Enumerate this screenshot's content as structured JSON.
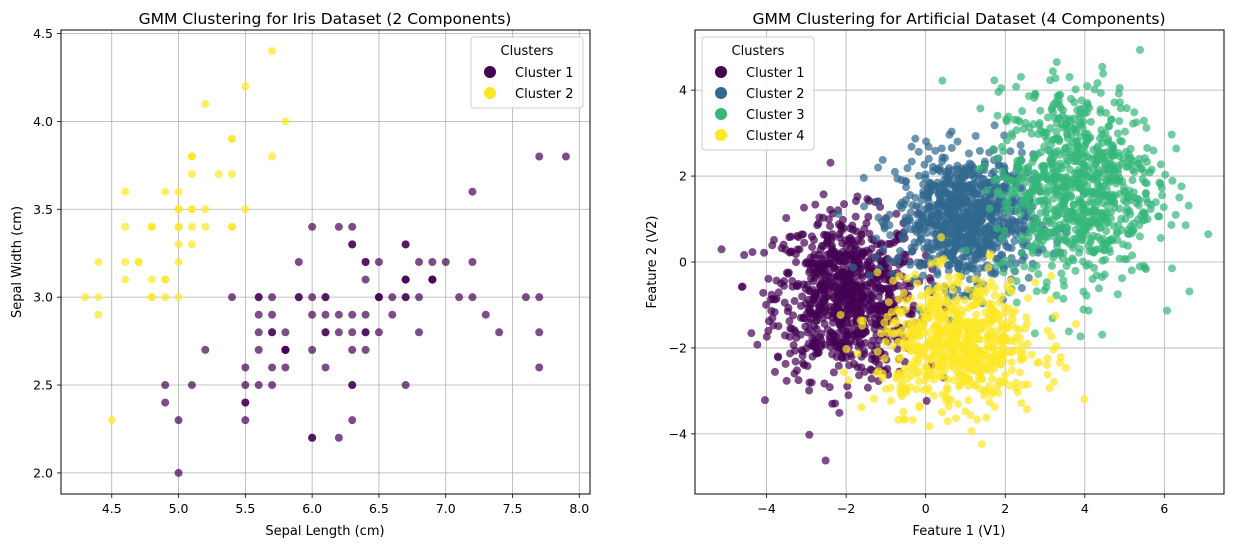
{
  "chart_data": [
    {
      "type": "scatter",
      "title": "GMM Clustering for Iris Dataset (2 Components)",
      "xlabel": "Sepal Length (cm)",
      "ylabel": "Sepal Width (cm)",
      "xlim": [
        4.12,
        8.08
      ],
      "ylim": [
        1.88,
        4.52
      ],
      "xticks": [
        "4.5",
        "5.0",
        "5.5",
        "6.0",
        "6.5",
        "7.0",
        "7.5",
        "8.0"
      ],
      "yticks": [
        "2.0",
        "2.5",
        "3.0",
        "3.5",
        "4.0",
        "4.5"
      ],
      "grid": true,
      "legend": {
        "title": "Clusters",
        "position": "top-right"
      },
      "series": [
        {
          "name": "Cluster 1",
          "color": "#440154",
          "points": [
            [
              5.5,
              2.3
            ],
            [
              6.5,
              2.8
            ],
            [
              5.7,
              2.8
            ],
            [
              6.3,
              3.3
            ],
            [
              4.9,
              2.4
            ],
            [
              6.6,
              2.9
            ],
            [
              5.2,
              2.7
            ],
            [
              5.0,
              2.0
            ],
            [
              5.9,
              3.0
            ],
            [
              6.0,
              2.2
            ],
            [
              6.1,
              2.9
            ],
            [
              5.6,
              2.9
            ],
            [
              6.7,
              3.1
            ],
            [
              5.6,
              3.0
            ],
            [
              5.8,
              2.7
            ],
            [
              6.2,
              2.2
            ],
            [
              5.6,
              2.5
            ],
            [
              5.9,
              3.2
            ],
            [
              6.1,
              2.8
            ],
            [
              6.3,
              2.5
            ],
            [
              6.1,
              2.8
            ],
            [
              6.4,
              2.9
            ],
            [
              6.6,
              3.0
            ],
            [
              6.8,
              2.8
            ],
            [
              6.7,
              3.0
            ],
            [
              6.0,
              2.9
            ],
            [
              5.7,
              2.6
            ],
            [
              5.5,
              2.4
            ],
            [
              5.5,
              2.4
            ],
            [
              5.8,
              2.7
            ],
            [
              6.0,
              2.7
            ],
            [
              5.4,
              3.0
            ],
            [
              6.0,
              3.4
            ],
            [
              6.7,
              3.1
            ],
            [
              6.3,
              2.3
            ],
            [
              5.6,
              3.0
            ],
            [
              5.5,
              2.5
            ],
            [
              5.5,
              2.6
            ],
            [
              6.1,
              3.0
            ],
            [
              5.8,
              2.6
            ],
            [
              5.0,
              2.3
            ],
            [
              5.6,
              2.7
            ],
            [
              5.7,
              3.0
            ],
            [
              5.7,
              2.9
            ],
            [
              6.2,
              2.9
            ],
            [
              5.1,
              2.5
            ],
            [
              5.7,
              2.8
            ],
            [
              7.0,
              3.2
            ],
            [
              6.4,
              3.2
            ],
            [
              6.9,
              3.1
            ],
            [
              6.3,
              3.3
            ],
            [
              5.8,
              2.7
            ],
            [
              7.1,
              3.0
            ],
            [
              6.3,
              2.9
            ],
            [
              6.5,
              3.0
            ],
            [
              7.6,
              3.0
            ],
            [
              4.9,
              2.5
            ],
            [
              7.3,
              2.9
            ],
            [
              6.7,
              2.5
            ],
            [
              7.2,
              3.6
            ],
            [
              6.5,
              3.2
            ],
            [
              6.4,
              2.7
            ],
            [
              6.8,
              3.0
            ],
            [
              5.7,
              2.5
            ],
            [
              5.8,
              2.8
            ],
            [
              6.4,
              3.2
            ],
            [
              6.5,
              3.0
            ],
            [
              7.7,
              3.8
            ],
            [
              7.7,
              2.6
            ],
            [
              6.0,
              2.2
            ],
            [
              6.9,
              3.2
            ],
            [
              5.6,
              2.8
            ],
            [
              7.7,
              2.8
            ],
            [
              6.3,
              2.7
            ],
            [
              6.7,
              3.3
            ],
            [
              7.2,
              3.2
            ],
            [
              6.2,
              2.8
            ],
            [
              6.1,
              3.0
            ],
            [
              6.4,
              2.8
            ],
            [
              7.2,
              3.0
            ],
            [
              7.4,
              2.8
            ],
            [
              7.9,
              3.8
            ],
            [
              6.4,
              2.8
            ],
            [
              6.3,
              2.8
            ],
            [
              6.1,
              2.6
            ],
            [
              7.7,
              3.0
            ],
            [
              6.3,
              3.4
            ],
            [
              6.4,
              3.1
            ],
            [
              6.0,
              3.0
            ],
            [
              6.9,
              3.1
            ],
            [
              6.7,
              3.1
            ],
            [
              6.9,
              3.1
            ],
            [
              5.8,
              2.7
            ],
            [
              6.8,
              3.2
            ],
            [
              6.7,
              3.3
            ],
            [
              6.7,
              3.0
            ],
            [
              6.3,
              2.5
            ],
            [
              6.5,
              3.0
            ],
            [
              6.2,
              3.4
            ],
            [
              5.9,
              3.0
            ]
          ]
        },
        {
          "name": "Cluster 2",
          "color": "#fde725",
          "points": [
            [
              5.1,
              3.5
            ],
            [
              4.9,
              3.0
            ],
            [
              4.7,
              3.2
            ],
            [
              4.6,
              3.1
            ],
            [
              5.0,
              3.6
            ],
            [
              5.4,
              3.9
            ],
            [
              4.6,
              3.4
            ],
            [
              5.0,
              3.4
            ],
            [
              4.4,
              2.9
            ],
            [
              4.9,
              3.1
            ],
            [
              5.4,
              3.7
            ],
            [
              4.8,
              3.4
            ],
            [
              4.8,
              3.0
            ],
            [
              4.3,
              3.0
            ],
            [
              5.8,
              4.0
            ],
            [
              5.7,
              4.4
            ],
            [
              5.4,
              3.9
            ],
            [
              5.1,
              3.5
            ],
            [
              5.7,
              3.8
            ],
            [
              5.1,
              3.8
            ],
            [
              5.4,
              3.4
            ],
            [
              5.1,
              3.7
            ],
            [
              4.6,
              3.6
            ],
            [
              5.1,
              3.3
            ],
            [
              4.8,
              3.4
            ],
            [
              5.0,
              3.0
            ],
            [
              5.0,
              3.4
            ],
            [
              5.2,
              3.5
            ],
            [
              5.2,
              3.4
            ],
            [
              4.7,
              3.2
            ],
            [
              4.8,
              3.1
            ],
            [
              5.4,
              3.4
            ],
            [
              5.2,
              4.1
            ],
            [
              5.5,
              4.2
            ],
            [
              4.9,
              3.1
            ],
            [
              5.0,
              3.2
            ],
            [
              5.5,
              3.5
            ],
            [
              4.9,
              3.6
            ],
            [
              4.4,
              3.0
            ],
            [
              5.1,
              3.4
            ],
            [
              5.0,
              3.5
            ],
            [
              4.5,
              2.3
            ],
            [
              4.4,
              3.2
            ],
            [
              5.0,
              3.5
            ],
            [
              5.1,
              3.8
            ],
            [
              4.8,
              3.0
            ],
            [
              5.1,
              3.8
            ],
            [
              4.6,
              3.2
            ],
            [
              5.3,
              3.7
            ],
            [
              5.0,
              3.3
            ]
          ]
        }
      ]
    },
    {
      "type": "scatter",
      "title": "GMM Clustering for Artificial Dataset (4 Components)",
      "xlabel": "Feature 1 (V1)",
      "ylabel": "Feature 2 (V2)",
      "xlim": [
        -5.8,
        7.5
      ],
      "ylim": [
        -5.4,
        5.4
      ],
      "xticks": [
        "−4",
        "−2",
        "0",
        "2",
        "4",
        "6"
      ],
      "yticks": [
        "−4",
        "−2",
        "0",
        "2",
        "4"
      ],
      "grid": true,
      "legend": {
        "title": "Clusters",
        "position": "top-left"
      },
      "series": [
        {
          "name": "Cluster 1",
          "color": "#440154",
          "center": [
            -2.0,
            -0.8
          ],
          "spread": [
            0.9,
            0.95
          ],
          "count": 850
        },
        {
          "name": "Cluster 2",
          "color": "#31688e",
          "center": [
            1.0,
            1.0
          ],
          "spread": [
            0.85,
            0.75
          ],
          "count": 850
        },
        {
          "name": "Cluster 3",
          "color": "#35b779",
          "center": [
            3.8,
            1.8
          ],
          "spread": [
            1.0,
            1.15
          ],
          "count": 850
        },
        {
          "name": "Cluster 4",
          "color": "#fde725",
          "center": [
            0.8,
            -1.9
          ],
          "spread": [
            1.0,
            0.75
          ],
          "count": 650
        }
      ]
    }
  ]
}
